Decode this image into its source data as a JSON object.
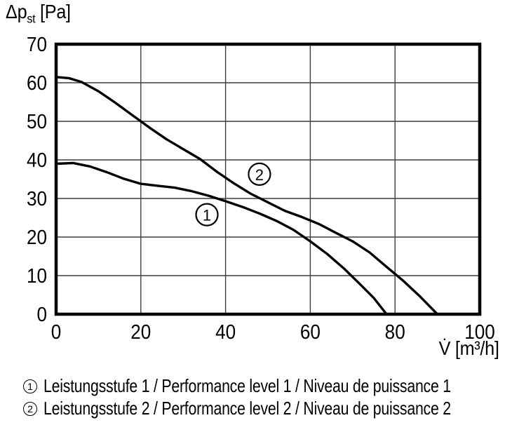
{
  "colors": {
    "curve": "#000000",
    "grid": "#3d3d3d",
    "frame": "#000000",
    "background": "#ffffff",
    "text": "#000000"
  },
  "y_axis_title": {
    "main": "Δp",
    "sub": "st",
    "unit": " [Pa]"
  },
  "x_axis_title": "V̇ [m³/h]",
  "chart_data": {
    "type": "line",
    "title": "",
    "xlabel": "V̇ [m³/h]",
    "ylabel": "Δpst [Pa]",
    "xlim": [
      0,
      100
    ],
    "ylim": [
      0,
      70
    ],
    "xticks": [
      0,
      20,
      40,
      60,
      80,
      100
    ],
    "yticks": [
      0,
      10,
      20,
      30,
      40,
      50,
      60,
      70
    ],
    "grid": true,
    "legend_position": "below",
    "series": [
      {
        "marker": "1",
        "name": "Leistungsstufe 1 / Performance level 1 / Niveau de puissance 1",
        "points": [
          [
            0,
            39
          ],
          [
            4,
            39.2
          ],
          [
            8,
            38.3
          ],
          [
            12,
            36.8
          ],
          [
            16,
            35.1
          ],
          [
            20,
            33.8
          ],
          [
            24,
            33.3
          ],
          [
            28,
            32.8
          ],
          [
            32,
            31.9
          ],
          [
            36,
            30.7
          ],
          [
            40,
            29.3
          ],
          [
            44,
            27.8
          ],
          [
            48,
            26.1
          ],
          [
            52,
            24.2
          ],
          [
            56,
            21.9
          ],
          [
            60,
            18.9
          ],
          [
            64,
            15.6
          ],
          [
            68,
            11.8
          ],
          [
            72,
            7.5
          ],
          [
            75,
            4.2
          ],
          [
            78,
            0
          ]
        ]
      },
      {
        "marker": "2",
        "name": "Leistungsstufe 2 / Performance level 2 / Niveau de puissance 2",
        "points": [
          [
            0,
            61.5
          ],
          [
            3,
            61.2
          ],
          [
            6,
            60.2
          ],
          [
            10,
            57.8
          ],
          [
            14,
            54.8
          ],
          [
            18,
            51.6
          ],
          [
            22,
            48.4
          ],
          [
            26,
            45.4
          ],
          [
            30,
            42.8
          ],
          [
            34,
            40.2
          ],
          [
            38,
            36.9
          ],
          [
            42,
            33.9
          ],
          [
            46,
            31.2
          ],
          [
            50,
            29
          ],
          [
            54,
            26.8
          ],
          [
            58,
            25.2
          ],
          [
            62,
            23.4
          ],
          [
            66,
            21.1
          ],
          [
            70,
            18.9
          ],
          [
            74,
            16
          ],
          [
            78,
            12.3
          ],
          [
            82,
            8.6
          ],
          [
            86,
            4.5
          ],
          [
            90,
            0
          ]
        ]
      }
    ],
    "curve_markers": [
      {
        "label": "1",
        "x": 35.6,
        "y": 25.8
      },
      {
        "label": "2",
        "x": 48.0,
        "y": 36.3
      }
    ]
  }
}
